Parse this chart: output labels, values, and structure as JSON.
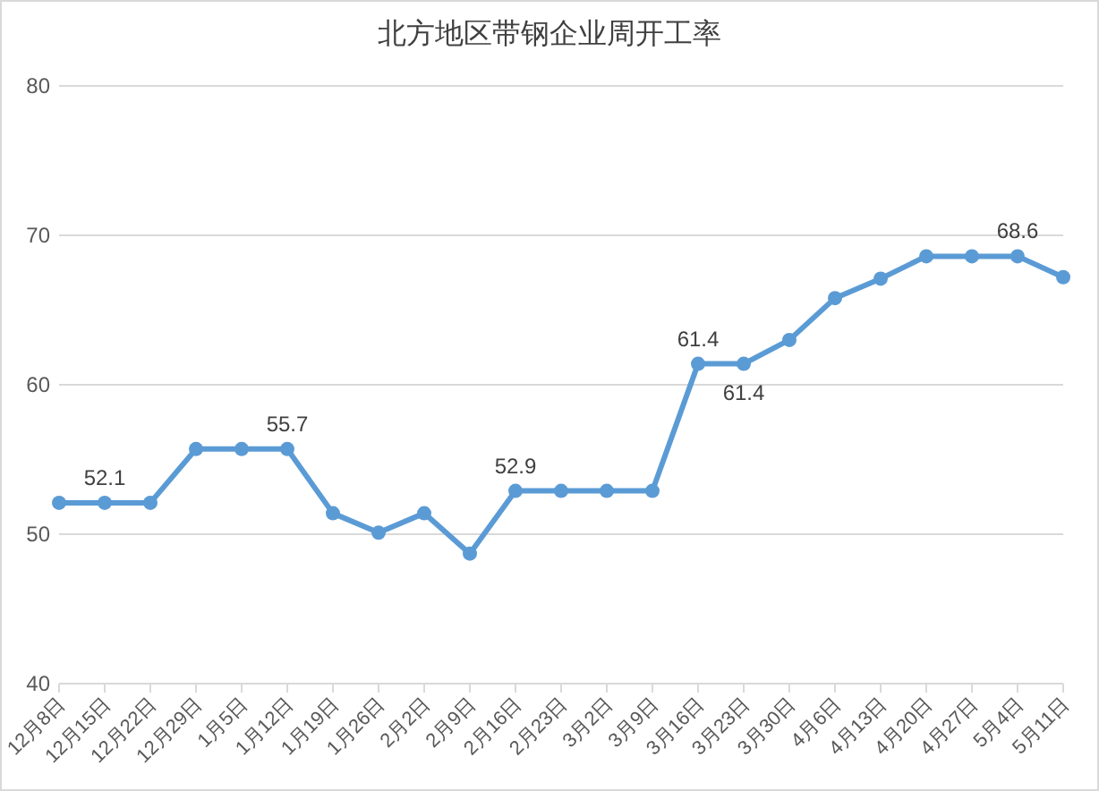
{
  "chart_data": {
    "type": "line",
    "title": "北方地区带钢企业周开工率",
    "categories": [
      "12月8日",
      "12月15日",
      "12月22日",
      "12月29日",
      "1月5日",
      "1月12日",
      "1月19日",
      "1月26日",
      "2月2日",
      "2月9日",
      "2月16日",
      "2月23日",
      "3月2日",
      "3月9日",
      "3月16日",
      "3月23日",
      "3月30日",
      "4月6日",
      "4月13日",
      "4月20日",
      "4月27日",
      "5月4日",
      "5月11日"
    ],
    "series": [
      {
        "color": "#5b9bd5",
        "values": [
          52.1,
          52.1,
          52.1,
          55.7,
          55.7,
          55.7,
          51.4,
          50.1,
          51.4,
          48.7,
          52.9,
          52.9,
          52.9,
          52.9,
          61.4,
          61.4,
          63.0,
          65.8,
          67.1,
          68.6,
          68.6,
          68.6,
          67.2
        ],
        "value_labels": [
          null,
          "52.1",
          null,
          null,
          null,
          "55.7",
          null,
          null,
          null,
          null,
          "52.9",
          null,
          null,
          null,
          "61.4",
          "61.4",
          null,
          null,
          null,
          null,
          null,
          "68.6",
          null
        ]
      }
    ],
    "ylim": [
      40,
      80
    ],
    "yticks": [
      40,
      50,
      60,
      70,
      80
    ],
    "grid": "y",
    "marker": "circle",
    "line_style": "solid"
  }
}
